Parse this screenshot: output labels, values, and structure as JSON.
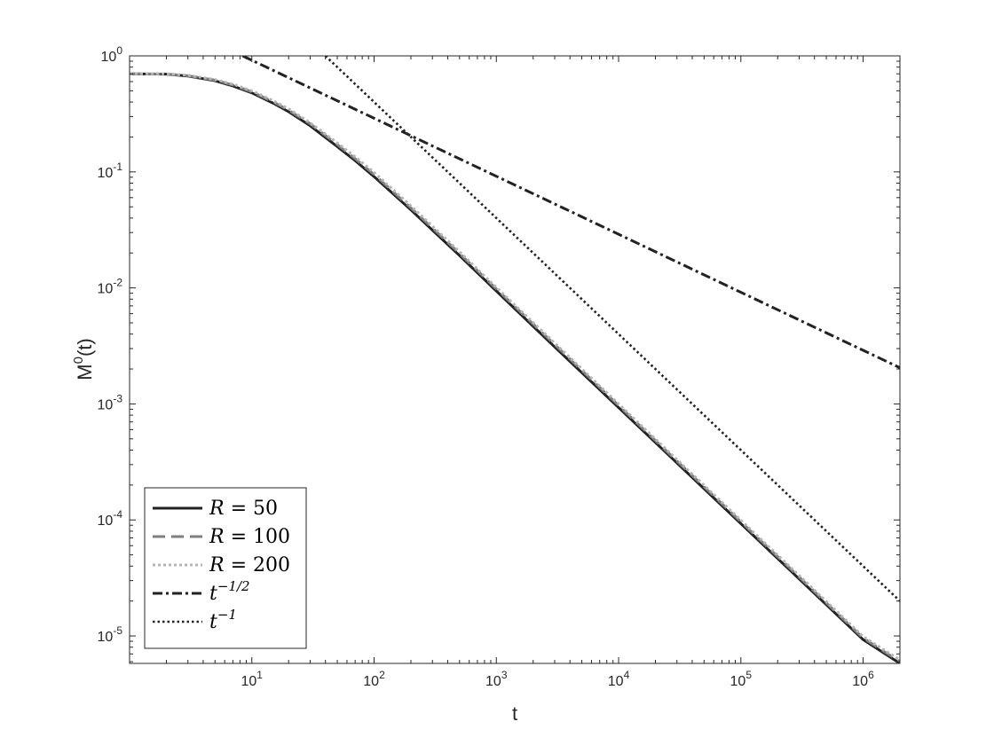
{
  "chart_data": {
    "type": "line",
    "title": "",
    "xlabel": "t",
    "ylabel_base": "M",
    "ylabel_sup": "0",
    "ylabel_tail": "(t)",
    "x_scale": "log",
    "y_scale": "log",
    "xlim": [
      1,
      2000000
    ],
    "ylim": [
      5.8e-06,
      1
    ],
    "grid": false,
    "legend_position": "bottom-left",
    "x_ticks": [
      {
        "value": 10,
        "base": "10",
        "exp": "1"
      },
      {
        "value": 100,
        "base": "10",
        "exp": "2"
      },
      {
        "value": 1000,
        "base": "10",
        "exp": "3"
      },
      {
        "value": 10000,
        "base": "10",
        "exp": "4"
      },
      {
        "value": 100000,
        "base": "10",
        "exp": "5"
      },
      {
        "value": 1000000,
        "base": "10",
        "exp": "6"
      }
    ],
    "y_ticks": [
      {
        "value": 1,
        "base": "10",
        "exp": "0"
      },
      {
        "value": 0.1,
        "base": "10",
        "exp": "-1"
      },
      {
        "value": 0.01,
        "base": "10",
        "exp": "-2"
      },
      {
        "value": 0.001,
        "base": "10",
        "exp": "-3"
      },
      {
        "value": 0.0001,
        "base": "10",
        "exp": "-4"
      },
      {
        "value": 1e-05,
        "base": "10",
        "exp": "-5"
      }
    ],
    "series": [
      {
        "name": "R = 50",
        "legend_var": "R",
        "legend_rest": " = 50",
        "color": "#222222",
        "style": "solid",
        "x": [
          1,
          2,
          3,
          5,
          7,
          10,
          15,
          20,
          30,
          50,
          70,
          100,
          200,
          500,
          1000,
          3000,
          10000,
          30000,
          100000,
          300000,
          1000000,
          2000000
        ],
        "y": [
          0.7,
          0.695,
          0.67,
          0.61,
          0.55,
          0.48,
          0.39,
          0.33,
          0.25,
          0.165,
          0.125,
          0.091,
          0.047,
          0.019,
          0.0094,
          0.0031,
          0.00093,
          0.00031,
          9.3e-05,
          3.1e-05,
          9.3e-06,
          5.8e-06
        ]
      },
      {
        "name": "R = 100",
        "legend_var": "R",
        "legend_rest": " = 100",
        "color": "#7f7f7f",
        "style": "dashed",
        "x": [
          1,
          2,
          3,
          5,
          7,
          10,
          15,
          20,
          30,
          50,
          70,
          100,
          200,
          500,
          1000,
          3000,
          10000,
          30000,
          100000,
          300000,
          1000000,
          2000000
        ],
        "y": [
          0.7,
          0.698,
          0.675,
          0.618,
          0.56,
          0.49,
          0.4,
          0.34,
          0.26,
          0.172,
          0.13,
          0.095,
          0.049,
          0.0198,
          0.0098,
          0.00325,
          0.00097,
          0.000322,
          9.65e-05,
          3.22e-05,
          9.6e-06,
          6e-06
        ]
      },
      {
        "name": "R = 200",
        "legend_var": "R",
        "legend_rest": " = 200",
        "color": "#b5b5b5",
        "style": "dotted",
        "x": [
          1,
          2,
          3,
          5,
          7,
          10,
          15,
          20,
          30,
          50,
          70,
          100,
          200,
          500,
          1000,
          3000,
          10000,
          30000,
          100000,
          300000,
          1000000,
          2000000
        ],
        "y": [
          0.7,
          0.7,
          0.68,
          0.625,
          0.57,
          0.5,
          0.41,
          0.35,
          0.265,
          0.178,
          0.135,
          0.099,
          0.051,
          0.0205,
          0.0101,
          0.00335,
          0.001,
          0.000332,
          9.95e-05,
          3.32e-05,
          9.9e-06,
          6.2e-06
        ]
      },
      {
        "name": "t^-1/2",
        "legend_var": "t",
        "legend_sup": "−1/2",
        "color": "#222222",
        "style": "dashdot",
        "x": [
          8.41,
          2000000
        ],
        "y": [
          1,
          0.00205
        ]
      },
      {
        "name": "t^-1",
        "legend_var": "t",
        "legend_sup": "−1",
        "color": "#222222",
        "style": "dotted-dark",
        "x": [
          40,
          2000000
        ],
        "y": [
          1,
          2e-05
        ]
      }
    ]
  }
}
